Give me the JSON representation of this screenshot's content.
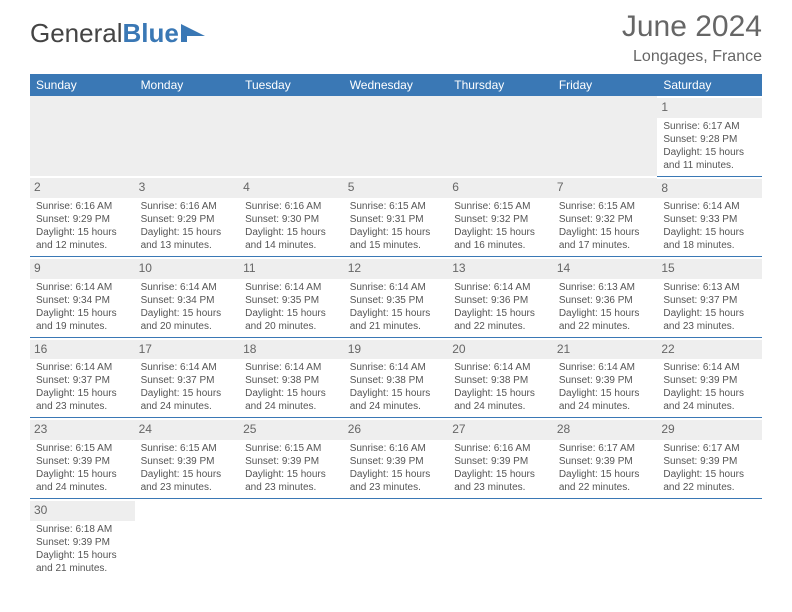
{
  "brand": {
    "part1": "General",
    "part2": "Blue"
  },
  "title": "June 2024",
  "location": "Longages, France",
  "colors": {
    "header_bg": "#3a78b5",
    "header_text": "#ffffff",
    "daynum_bg": "#eeeeee",
    "cell_text": "#555555",
    "border": "#3a78b5",
    "title_text": "#666666"
  },
  "fonts": {
    "title_size": 30,
    "location_size": 16,
    "dayhead_size": 12,
    "cell_size": 10
  },
  "day_headers": [
    "Sunday",
    "Monday",
    "Tuesday",
    "Wednesday",
    "Thursday",
    "Friday",
    "Saturday"
  ],
  "weeks": [
    [
      {
        "n": "",
        "sunrise": "",
        "sunset": "",
        "daylight": ""
      },
      {
        "n": "",
        "sunrise": "",
        "sunset": "",
        "daylight": ""
      },
      {
        "n": "",
        "sunrise": "",
        "sunset": "",
        "daylight": ""
      },
      {
        "n": "",
        "sunrise": "",
        "sunset": "",
        "daylight": ""
      },
      {
        "n": "",
        "sunrise": "",
        "sunset": "",
        "daylight": ""
      },
      {
        "n": "",
        "sunrise": "",
        "sunset": "",
        "daylight": ""
      },
      {
        "n": "1",
        "sunrise": "Sunrise: 6:17 AM",
        "sunset": "Sunset: 9:28 PM",
        "daylight": "Daylight: 15 hours and 11 minutes."
      }
    ],
    [
      {
        "n": "2",
        "sunrise": "Sunrise: 6:16 AM",
        "sunset": "Sunset: 9:29 PM",
        "daylight": "Daylight: 15 hours and 12 minutes."
      },
      {
        "n": "3",
        "sunrise": "Sunrise: 6:16 AM",
        "sunset": "Sunset: 9:29 PM",
        "daylight": "Daylight: 15 hours and 13 minutes."
      },
      {
        "n": "4",
        "sunrise": "Sunrise: 6:16 AM",
        "sunset": "Sunset: 9:30 PM",
        "daylight": "Daylight: 15 hours and 14 minutes."
      },
      {
        "n": "5",
        "sunrise": "Sunrise: 6:15 AM",
        "sunset": "Sunset: 9:31 PM",
        "daylight": "Daylight: 15 hours and 15 minutes."
      },
      {
        "n": "6",
        "sunrise": "Sunrise: 6:15 AM",
        "sunset": "Sunset: 9:32 PM",
        "daylight": "Daylight: 15 hours and 16 minutes."
      },
      {
        "n": "7",
        "sunrise": "Sunrise: 6:15 AM",
        "sunset": "Sunset: 9:32 PM",
        "daylight": "Daylight: 15 hours and 17 minutes."
      },
      {
        "n": "8",
        "sunrise": "Sunrise: 6:14 AM",
        "sunset": "Sunset: 9:33 PM",
        "daylight": "Daylight: 15 hours and 18 minutes."
      }
    ],
    [
      {
        "n": "9",
        "sunrise": "Sunrise: 6:14 AM",
        "sunset": "Sunset: 9:34 PM",
        "daylight": "Daylight: 15 hours and 19 minutes."
      },
      {
        "n": "10",
        "sunrise": "Sunrise: 6:14 AM",
        "sunset": "Sunset: 9:34 PM",
        "daylight": "Daylight: 15 hours and 20 minutes."
      },
      {
        "n": "11",
        "sunrise": "Sunrise: 6:14 AM",
        "sunset": "Sunset: 9:35 PM",
        "daylight": "Daylight: 15 hours and 20 minutes."
      },
      {
        "n": "12",
        "sunrise": "Sunrise: 6:14 AM",
        "sunset": "Sunset: 9:35 PM",
        "daylight": "Daylight: 15 hours and 21 minutes."
      },
      {
        "n": "13",
        "sunrise": "Sunrise: 6:14 AM",
        "sunset": "Sunset: 9:36 PM",
        "daylight": "Daylight: 15 hours and 22 minutes."
      },
      {
        "n": "14",
        "sunrise": "Sunrise: 6:13 AM",
        "sunset": "Sunset: 9:36 PM",
        "daylight": "Daylight: 15 hours and 22 minutes."
      },
      {
        "n": "15",
        "sunrise": "Sunrise: 6:13 AM",
        "sunset": "Sunset: 9:37 PM",
        "daylight": "Daylight: 15 hours and 23 minutes."
      }
    ],
    [
      {
        "n": "16",
        "sunrise": "Sunrise: 6:14 AM",
        "sunset": "Sunset: 9:37 PM",
        "daylight": "Daylight: 15 hours and 23 minutes."
      },
      {
        "n": "17",
        "sunrise": "Sunrise: 6:14 AM",
        "sunset": "Sunset: 9:37 PM",
        "daylight": "Daylight: 15 hours and 24 minutes."
      },
      {
        "n": "18",
        "sunrise": "Sunrise: 6:14 AM",
        "sunset": "Sunset: 9:38 PM",
        "daylight": "Daylight: 15 hours and 24 minutes."
      },
      {
        "n": "19",
        "sunrise": "Sunrise: 6:14 AM",
        "sunset": "Sunset: 9:38 PM",
        "daylight": "Daylight: 15 hours and 24 minutes."
      },
      {
        "n": "20",
        "sunrise": "Sunrise: 6:14 AM",
        "sunset": "Sunset: 9:38 PM",
        "daylight": "Daylight: 15 hours and 24 minutes."
      },
      {
        "n": "21",
        "sunrise": "Sunrise: 6:14 AM",
        "sunset": "Sunset: 9:39 PM",
        "daylight": "Daylight: 15 hours and 24 minutes."
      },
      {
        "n": "22",
        "sunrise": "Sunrise: 6:14 AM",
        "sunset": "Sunset: 9:39 PM",
        "daylight": "Daylight: 15 hours and 24 minutes."
      }
    ],
    [
      {
        "n": "23",
        "sunrise": "Sunrise: 6:15 AM",
        "sunset": "Sunset: 9:39 PM",
        "daylight": "Daylight: 15 hours and 24 minutes."
      },
      {
        "n": "24",
        "sunrise": "Sunrise: 6:15 AM",
        "sunset": "Sunset: 9:39 PM",
        "daylight": "Daylight: 15 hours and 23 minutes."
      },
      {
        "n": "25",
        "sunrise": "Sunrise: 6:15 AM",
        "sunset": "Sunset: 9:39 PM",
        "daylight": "Daylight: 15 hours and 23 minutes."
      },
      {
        "n": "26",
        "sunrise": "Sunrise: 6:16 AM",
        "sunset": "Sunset: 9:39 PM",
        "daylight": "Daylight: 15 hours and 23 minutes."
      },
      {
        "n": "27",
        "sunrise": "Sunrise: 6:16 AM",
        "sunset": "Sunset: 9:39 PM",
        "daylight": "Daylight: 15 hours and 23 minutes."
      },
      {
        "n": "28",
        "sunrise": "Sunrise: 6:17 AM",
        "sunset": "Sunset: 9:39 PM",
        "daylight": "Daylight: 15 hours and 22 minutes."
      },
      {
        "n": "29",
        "sunrise": "Sunrise: 6:17 AM",
        "sunset": "Sunset: 9:39 PM",
        "daylight": "Daylight: 15 hours and 22 minutes."
      }
    ],
    [
      {
        "n": "30",
        "sunrise": "Sunrise: 6:18 AM",
        "sunset": "Sunset: 9:39 PM",
        "daylight": "Daylight: 15 hours and 21 minutes."
      },
      {
        "n": "",
        "sunrise": "",
        "sunset": "",
        "daylight": ""
      },
      {
        "n": "",
        "sunrise": "",
        "sunset": "",
        "daylight": ""
      },
      {
        "n": "",
        "sunrise": "",
        "sunset": "",
        "daylight": ""
      },
      {
        "n": "",
        "sunrise": "",
        "sunset": "",
        "daylight": ""
      },
      {
        "n": "",
        "sunrise": "",
        "sunset": "",
        "daylight": ""
      },
      {
        "n": "",
        "sunrise": "",
        "sunset": "",
        "daylight": ""
      }
    ]
  ]
}
